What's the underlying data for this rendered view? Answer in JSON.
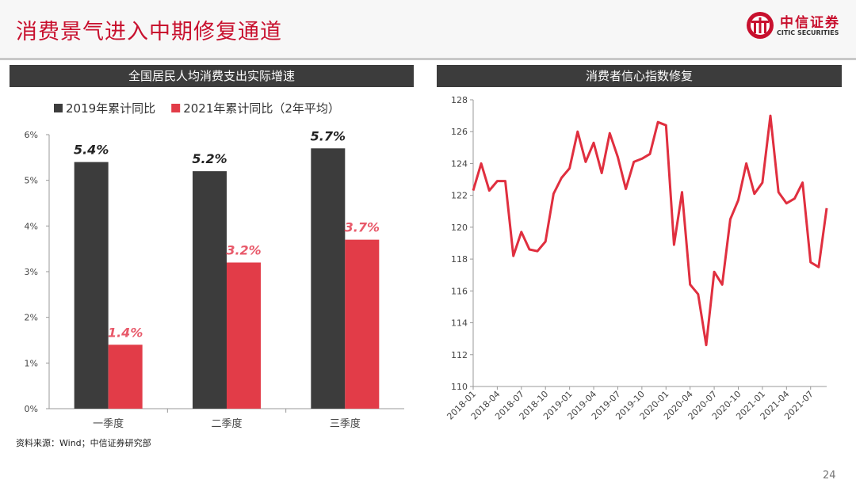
{
  "slide": {
    "title": "消费景气进入中期修复通道",
    "logo_cn": "中信证券",
    "logo_en": "CITIC SECURITIES",
    "source": "资料来源：Wind；中信证券研究部",
    "page_number": "24"
  },
  "colors": {
    "accent": "#c8102e",
    "dark_bar": "#3c3c3c",
    "red_bar": "#e23c48",
    "line": "#e02f3f"
  },
  "chart_data": [
    {
      "type": "bar",
      "title": "全国居民人均消费支出实际增速",
      "categories": [
        "一季度",
        "二季度",
        "三季度"
      ],
      "series": [
        {
          "name": "2019年累计同比",
          "values": [
            5.4,
            5.2,
            5.7
          ],
          "labels": [
            "5.4%",
            "5.2%",
            "5.7%"
          ],
          "color": "#3c3c3c"
        },
        {
          "name": "2021年累计同比（2年平均）",
          "values": [
            1.4,
            3.2,
            3.7
          ],
          "labels": [
            "1.4%",
            "3.2%",
            "3.7%"
          ],
          "color": "#e23c48"
        }
      ],
      "ylim": [
        0,
        6
      ],
      "yticks": [
        "0%",
        "1%",
        "2%",
        "3%",
        "4%",
        "5%",
        "6%"
      ],
      "legend": "top",
      "grid": false
    },
    {
      "type": "line",
      "title": "消费者信心指数修复",
      "x": [
        "2018-01",
        "2018-02",
        "2018-03",
        "2018-04",
        "2018-05",
        "2018-06",
        "2018-07",
        "2018-08",
        "2018-09",
        "2018-10",
        "2018-11",
        "2018-12",
        "2019-01",
        "2019-02",
        "2019-03",
        "2019-04",
        "2019-05",
        "2019-06",
        "2019-07",
        "2019-08",
        "2019-09",
        "2019-10",
        "2019-11",
        "2019-12",
        "2020-01",
        "2020-02",
        "2020-03",
        "2020-04",
        "2020-05",
        "2020-06",
        "2020-07",
        "2020-08",
        "2020-09",
        "2020-10",
        "2020-11",
        "2020-12",
        "2021-01",
        "2021-02",
        "2021-03",
        "2021-04",
        "2021-05",
        "2021-06",
        "2021-07",
        "2021-08",
        "2021-09"
      ],
      "series": [
        {
          "values": [
            122.3,
            124.0,
            122.3,
            122.9,
            122.9,
            118.2,
            119.7,
            118.6,
            118.5,
            119.1,
            122.1,
            123.1,
            123.7,
            126.0,
            124.1,
            125.3,
            123.4,
            125.9,
            124.4,
            122.4,
            124.1,
            124.3,
            124.6,
            126.6,
            126.4,
            118.9,
            122.2,
            116.4,
            115.8,
            112.6,
            117.2,
            116.4,
            120.5,
            121.7,
            124.0,
            122.1,
            122.8,
            127.0,
            122.2,
            121.5,
            121.8,
            122.8,
            117.8,
            117.5,
            121.2
          ]
        }
      ],
      "xticks": [
        "2018-01",
        "2018-04",
        "2018-07",
        "2018-10",
        "2019-01",
        "2019-04",
        "2019-07",
        "2019-10",
        "2020-01",
        "2020-04",
        "2020-07",
        "2020-10",
        "2021-01",
        "2021-04",
        "2021-07"
      ],
      "ylim": [
        110,
        128
      ],
      "yticks": [
        "110",
        "112",
        "114",
        "116",
        "118",
        "120",
        "122",
        "124",
        "126",
        "128"
      ],
      "grid": false
    }
  ]
}
